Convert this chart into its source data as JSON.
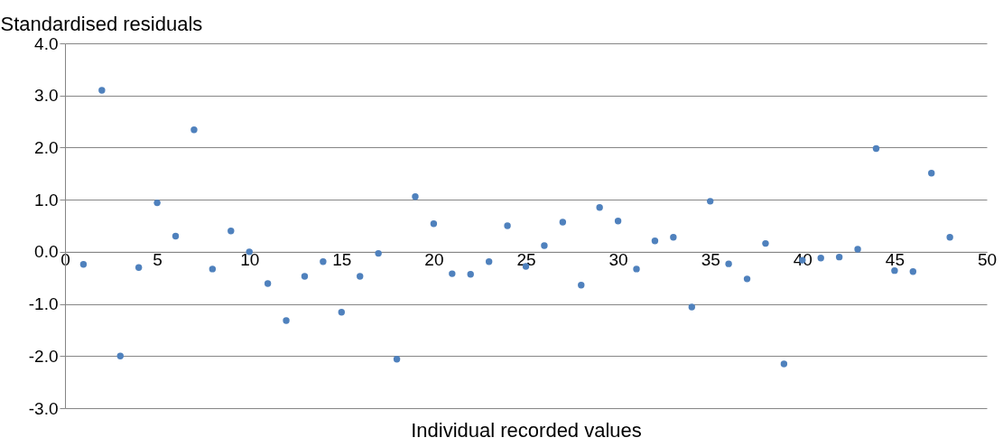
{
  "chart_data": {
    "type": "scatter",
    "xlabel": "Individual recorded values",
    "ylabel": "Standardised residuals",
    "x": [
      1,
      2,
      3,
      4,
      5,
      6,
      7,
      8,
      9,
      10,
      11,
      12,
      13,
      14,
      15,
      16,
      17,
      18,
      19,
      20,
      21,
      22,
      23,
      24,
      25,
      26,
      27,
      28,
      29,
      30,
      31,
      32,
      33,
      34,
      35,
      36,
      37,
      38,
      39,
      40,
      41,
      42,
      43,
      44,
      45,
      46,
      47,
      48
    ],
    "series": [
      {
        "color": "#4f81bd",
        "values": [
          -0.24,
          3.1,
          -2.0,
          -0.3,
          0.94,
          0.3,
          2.34,
          -0.33,
          0.4,
          0.0,
          -0.61,
          -1.32,
          -0.47,
          -0.19,
          -1.16,
          -0.47,
          -0.03,
          -2.06,
          1.06,
          0.54,
          -0.42,
          -0.43,
          -0.19,
          0.5,
          -0.28,
          0.12,
          0.57,
          -0.64,
          0.85,
          0.59,
          -0.33,
          0.21,
          0.28,
          -1.06,
          0.97,
          -0.23,
          -0.52,
          0.16,
          -2.15,
          -0.16,
          -0.12,
          -0.1,
          0.05,
          1.98,
          -0.36,
          -0.38,
          1.51,
          0.28
        ]
      }
    ],
    "xlim": [
      0,
      50
    ],
    "xticks": [
      0,
      5,
      10,
      15,
      20,
      25,
      30,
      35,
      40,
      45,
      50
    ],
    "ylim": [
      -3,
      4
    ],
    "yticks": [
      {
        "value": -3,
        "label": "-3.0"
      },
      {
        "value": -2,
        "label": "-2.0"
      },
      {
        "value": -1,
        "label": "-1.0"
      },
      {
        "value": 0,
        "label": "0.0"
      },
      {
        "value": 1,
        "label": "1.0"
      },
      {
        "value": 2,
        "label": "2.0"
      },
      {
        "value": 3,
        "label": "3.0"
      },
      {
        "value": 4,
        "label": "4.0"
      }
    ],
    "grid": "y",
    "marker": "circle"
  }
}
